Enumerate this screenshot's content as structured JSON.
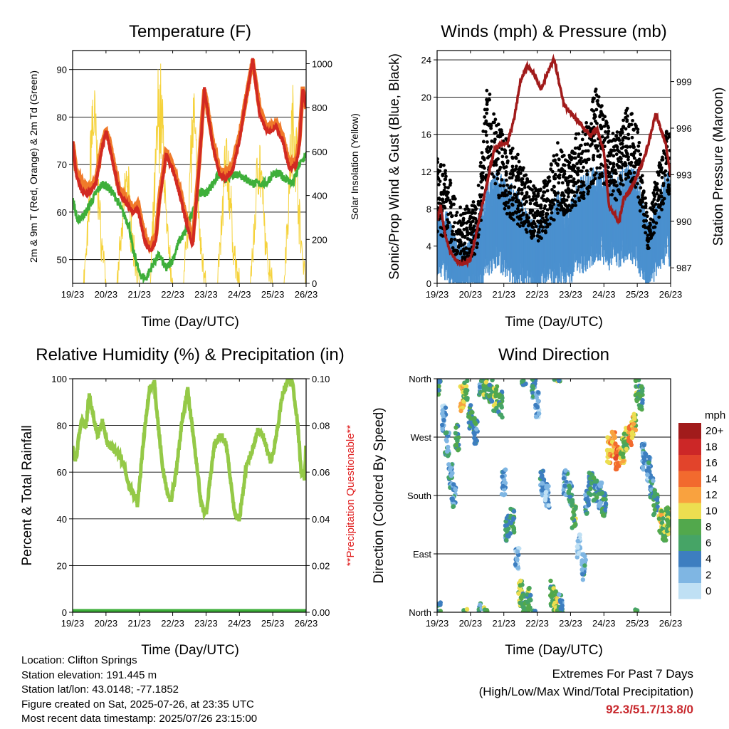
{
  "xticks": [
    "19/23",
    "20/23",
    "21/23",
    "22/23",
    "23/23",
    "24/23",
    "25/23",
    "26/23"
  ],
  "xlabel": "Time (Day/UTC)",
  "colors": {
    "temp_red": "#d22a22",
    "temp_orange": "#f07a2a",
    "dewpoint_green": "#3eaf3a",
    "solar_yellow": "#f5d23a",
    "gust_black": "#000000",
    "wind_blue": "#4a90cf",
    "pressure_maroon": "#a11b1b",
    "rh_green": "#94c947",
    "precip_green": "#3eaf3a",
    "questionable_red": "#e02020",
    "extremes_red": "#c8282d"
  },
  "chart_data": [
    {
      "id": "temperature",
      "type": "line",
      "title": "Temperature (F)",
      "xlabel": "Time (Day/UTC)",
      "ylabel": "2m & 9m T (Red, Orange) & 2m Td (Green)",
      "ylabel_right": "Solar Insolation (Yellow)",
      "ylim": [
        45,
        94
      ],
      "yticks": [
        50,
        60,
        70,
        80,
        90
      ],
      "ylim_right": [
        0,
        1060
      ],
      "yticks_right": [
        0,
        200,
        400,
        600,
        800,
        1000
      ],
      "xlim": [
        0,
        7
      ],
      "series": [
        {
          "axis": "left",
          "color": "#f07a2a",
          "x": [
            0,
            0.1,
            0.3,
            0.5,
            0.7,
            0.9,
            1.0,
            1.1,
            1.25,
            1.4,
            1.6,
            1.8,
            1.95,
            2.1,
            2.2,
            2.35,
            2.5,
            2.6,
            2.8,
            3.0,
            3.2,
            3.4,
            3.6,
            3.8,
            3.95,
            4.2,
            4.4,
            4.6,
            4.8,
            5.0,
            5.2,
            5.4,
            5.6,
            5.8,
            5.95,
            6.1,
            6.3,
            6.5,
            6.7,
            6.8,
            6.9,
            7.0
          ],
          "y": [
            75,
            69,
            66,
            65,
            67,
            75,
            77,
            75,
            70,
            65,
            63,
            61,
            62,
            57,
            54,
            53,
            55,
            63,
            73,
            70,
            65,
            59,
            54,
            71,
            86,
            75,
            69,
            68,
            70,
            76,
            84,
            92,
            82,
            78,
            78,
            79,
            76,
            70,
            71,
            75,
            86,
            82
          ]
        },
        {
          "axis": "left",
          "color": "#d22a22",
          "x": [
            0,
            0.1,
            0.3,
            0.5,
            0.7,
            0.9,
            1.0,
            1.1,
            1.25,
            1.4,
            1.6,
            1.8,
            1.95,
            2.1,
            2.2,
            2.35,
            2.5,
            2.6,
            2.8,
            3.0,
            3.2,
            3.4,
            3.6,
            3.8,
            3.95,
            4.2,
            4.4,
            4.6,
            4.8,
            5.0,
            5.2,
            5.4,
            5.6,
            5.8,
            5.95,
            6.1,
            6.3,
            6.5,
            6.7,
            6.8,
            6.9,
            7.0
          ],
          "y": [
            75,
            68,
            64,
            64,
            66,
            74,
            77,
            74,
            69,
            64,
            62,
            60,
            61,
            56,
            53,
            52,
            54,
            62,
            72,
            69,
            64,
            58,
            53,
            70,
            86,
            74,
            68,
            67,
            69,
            75,
            84,
            92,
            81,
            77,
            77,
            78,
            75,
            69,
            70,
            74,
            86,
            82
          ]
        },
        {
          "axis": "left",
          "color": "#3eaf3a",
          "x": [
            0,
            0.15,
            0.4,
            0.7,
            0.9,
            1.1,
            1.3,
            1.5,
            1.7,
            1.8,
            1.9,
            2.0,
            2.2,
            2.4,
            2.6,
            2.8,
            3.0,
            3.2,
            3.4,
            3.6,
            3.8,
            4.0,
            4.2,
            4.4,
            4.6,
            4.8,
            5.0,
            5.2,
            5.4,
            5.6,
            5.8,
            6.0,
            6.2,
            6.4,
            6.6,
            6.8,
            7.0
          ],
          "y": [
            63,
            58,
            60,
            64,
            66,
            65,
            63,
            60,
            57,
            52,
            50,
            47,
            46,
            49,
            51,
            48,
            50,
            54,
            56,
            60,
            64,
            64,
            66,
            68,
            67,
            68,
            68,
            67,
            66,
            66,
            66,
            68,
            68,
            67,
            66,
            70,
            72
          ]
        },
        {
          "axis": "right",
          "color": "#f5d23a",
          "x": [
            0,
            0.33,
            0.48,
            0.56,
            0.64,
            0.72,
            0.82,
            1.0,
            1.33,
            1.48,
            1.56,
            1.64,
            1.72,
            1.82,
            2.0,
            2.33,
            2.48,
            2.56,
            2.64,
            2.72,
            2.82,
            3.0,
            3.33,
            3.48,
            3.56,
            3.64,
            3.72,
            3.82,
            4.0,
            4.33,
            4.48,
            4.56,
            4.64,
            4.72,
            4.82,
            5.0,
            5.33,
            5.48,
            5.56,
            5.64,
            5.72,
            5.82,
            6.0,
            6.33,
            6.48,
            6.56,
            6.64,
            6.72,
            6.82,
            7.0
          ],
          "y": [
            0,
            0,
            350,
            870,
            980,
            750,
            350,
            0,
            0,
            300,
            500,
            650,
            400,
            200,
            0,
            0,
            600,
            980,
            1000,
            800,
            300,
            0,
            0,
            450,
            800,
            900,
            650,
            250,
            0,
            0,
            350,
            650,
            700,
            500,
            200,
            0,
            0,
            400,
            750,
            650,
            400,
            150,
            0,
            0,
            500,
            850,
            950,
            700,
            300,
            0
          ]
        }
      ]
    },
    {
      "id": "winds_pressure",
      "type": "scatter",
      "title": "Winds (mph) & Pressure (mb)",
      "xlabel": "Time (Day/UTC)",
      "ylabel": "Sonic/Prop Wind & Gust (Blue, Black)",
      "ylabel_right": "Station Pressure (Maroon)",
      "ylim": [
        0,
        25
      ],
      "yticks": [
        0,
        4,
        8,
        12,
        16,
        20,
        24
      ],
      "ylim_right": [
        986,
        1001
      ],
      "yticks_right": [
        987,
        990,
        993,
        996,
        999
      ],
      "xlim": [
        0,
        7
      ],
      "series": [
        {
          "axis": "right",
          "type": "line",
          "color": "#a11b1b",
          "x": [
            0,
            0.1,
            0.25,
            0.4,
            0.55,
            0.7,
            0.85,
            1.0,
            1.1,
            1.3,
            1.5,
            1.7,
            1.9,
            2.1,
            2.3,
            2.5,
            2.7,
            2.9,
            3.1,
            3.3,
            3.5,
            3.65,
            3.8,
            4.0,
            4.2,
            4.4,
            4.6,
            4.8,
            5.0,
            5.15,
            5.3,
            5.45,
            5.6,
            5.8,
            6.0,
            6.2,
            6.4,
            6.55,
            6.7,
            6.85,
            7.0
          ],
          "y": [
            990,
            991,
            989,
            988,
            987.5,
            987.3,
            987.3,
            987.5,
            988.5,
            990.5,
            992.5,
            994.5,
            995,
            995,
            996.5,
            999,
            1000,
            999.5,
            998.5,
            999.5,
            1000.5,
            999,
            997.5,
            997,
            996.5,
            996,
            995.5,
            996,
            994.5,
            991,
            990.5,
            990,
            991.5,
            992,
            993,
            994,
            995.5,
            997,
            996,
            995,
            993
          ]
        },
        {
          "axis": "left",
          "type": "band",
          "color": "#4a90cf",
          "x": [
            0,
            0.3,
            0.6,
            0.9,
            1.2,
            1.5,
            1.8,
            2.1,
            2.4,
            2.7,
            3.0,
            3.3,
            3.6,
            3.9,
            4.2,
            4.5,
            4.8,
            5.1,
            5.4,
            5.7,
            6.0,
            6.3,
            6.6,
            6.9,
            7.0
          ],
          "y": [
            5,
            4,
            2,
            2,
            3,
            6,
            7,
            6,
            5,
            4,
            3,
            4,
            5,
            4,
            6,
            7,
            8,
            7,
            7,
            8,
            7,
            3,
            5,
            8,
            7
          ],
          "spread": [
            3,
            3,
            2,
            2,
            3,
            4,
            4,
            4,
            4,
            3,
            3,
            3,
            4,
            3,
            4,
            4,
            4,
            4,
            4,
            4,
            4,
            3,
            3,
            4,
            4
          ]
        },
        {
          "axis": "left",
          "type": "points",
          "color": "#000000",
          "x": [
            0,
            0.3,
            0.6,
            0.9,
            1.2,
            1.5,
            1.8,
            2.1,
            2.4,
            2.7,
            3.0,
            3.3,
            3.6,
            3.9,
            4.2,
            4.5,
            4.8,
            5.1,
            5.4,
            5.7,
            6.0,
            6.3,
            6.6,
            6.9,
            7.0
          ],
          "y": [
            9,
            8,
            5,
            5,
            6,
            16,
            13,
            11,
            10,
            8,
            7,
            8,
            11,
            10,
            12,
            13,
            16,
            13,
            12,
            15,
            13,
            5,
            9,
            13,
            12
          ],
          "spread": [
            4,
            4,
            3,
            3,
            3,
            5,
            4,
            4,
            4,
            3,
            3,
            3,
            4,
            3,
            4,
            4,
            5,
            4,
            4,
            4,
            4,
            2,
            3,
            4,
            4
          ]
        }
      ]
    },
    {
      "id": "humidity_precip",
      "type": "line",
      "title": "Relative Humidity (%) & Precipitation (in)",
      "xlabel": "Time (Day/UTC)",
      "ylabel": "Percent & Total Rainfall",
      "ylabel_right": "**Precipitation Questionable**",
      "ylim": [
        0,
        100
      ],
      "yticks": [
        0,
        20,
        40,
        60,
        80,
        100
      ],
      "ylim_right": [
        0,
        0.1
      ],
      "yticks_right": [
        "0.00",
        "0.02",
        "0.04",
        "0.06",
        "0.08",
        "0.10"
      ],
      "xlim": [
        0,
        7
      ],
      "series": [
        {
          "axis": "left",
          "color": "#94c947",
          "x": [
            0,
            0.1,
            0.25,
            0.4,
            0.5,
            0.6,
            0.75,
            0.9,
            1.05,
            1.2,
            1.4,
            1.55,
            1.7,
            1.85,
            1.95,
            2.1,
            2.3,
            2.45,
            2.55,
            2.7,
            2.85,
            2.95,
            3.1,
            3.3,
            3.45,
            3.6,
            3.75,
            3.85,
            4.0,
            4.25,
            4.45,
            4.6,
            4.75,
            4.85,
            5.0,
            5.2,
            5.4,
            5.55,
            5.7,
            5.85,
            5.95,
            6.1,
            6.3,
            6.45,
            6.6,
            6.75,
            6.85,
            6.95,
            7.0
          ],
          "y": [
            70,
            65,
            82,
            80,
            93,
            85,
            76,
            82,
            72,
            70,
            68,
            62,
            54,
            50,
            46,
            70,
            96,
            98,
            82,
            62,
            50,
            48,
            60,
            84,
            95,
            78,
            60,
            46,
            42,
            72,
            76,
            72,
            55,
            42,
            40,
            62,
            70,
            78,
            76,
            68,
            64,
            75,
            94,
            99,
            98,
            80,
            60,
            58,
            72
          ]
        },
        {
          "axis": "right",
          "color": "#3eaf3a",
          "x": [
            0,
            7
          ],
          "y": [
            0,
            0
          ]
        }
      ]
    },
    {
      "id": "wind_direction",
      "type": "scatter",
      "title": "Wind Direction",
      "xlabel": "Time (Day/UTC)",
      "ylabel": "Direction (Colored By Speed)",
      "ylim": [
        0,
        360
      ],
      "ytick_labels": [
        "North",
        "East",
        "South",
        "West",
        "North"
      ],
      "ytick_values": [
        0,
        90,
        180,
        270,
        360
      ],
      "xlim": [
        0,
        7
      ],
      "legend": {
        "title": "mph",
        "labels": [
          "20+",
          "18",
          "16",
          "14",
          "12",
          "10",
          "8",
          "6",
          "4",
          "2",
          "0"
        ],
        "colors": [
          "#a11b1b",
          "#cc2727",
          "#e2442b",
          "#f26a2e",
          "#f9a23f",
          "#ecde50",
          "#52a84c",
          "#46a466",
          "#3d7ec0",
          "#7fb6e3",
          "#bfe0f4"
        ]
      },
      "series": [
        {
          "name": "",
          "x": [
            0.05,
            0.2,
            0.3,
            0.4,
            0.5,
            0.6,
            0.75,
            0.85,
            1.0,
            1.15,
            1.3,
            1.45,
            1.6,
            1.75,
            1.9,
            2.0,
            2.1,
            2.25,
            2.4,
            2.5,
            2.6,
            2.75,
            2.9,
            3.0,
            3.15,
            3.3,
            3.45,
            3.55,
            3.7,
            3.85,
            4.0,
            4.1,
            4.25,
            4.4,
            4.5,
            4.6,
            4.75,
            4.9,
            5.0,
            5.15,
            5.3,
            5.4,
            5.55,
            5.65,
            5.8,
            5.9,
            6.0,
            6.1,
            6.2,
            6.35,
            6.45,
            6.55,
            6.7,
            6.8,
            6.9,
            6.95
          ],
          "y": [
            355,
            300,
            260,
            210,
            180,
            270,
            330,
            345,
            300,
            280,
            355,
            350,
            340,
            330,
            320,
            200,
            130,
            140,
            80,
            30,
            10,
            20,
            350,
            320,
            200,
            180,
            30,
            15,
            10,
            200,
            180,
            150,
            100,
            70,
            170,
            200,
            190,
            180,
            165,
            250,
            260,
            240,
            250,
            265,
            275,
            290,
            345,
            330,
            240,
            220,
            190,
            170,
            140,
            130,
            150,
            140
          ],
          "speed": [
            6,
            2,
            3,
            4,
            4,
            6,
            10,
            8,
            6,
            5,
            4,
            7,
            6,
            8,
            6,
            3,
            4,
            6,
            2,
            8,
            6,
            7,
            5,
            2,
            3,
            2,
            7,
            9,
            5,
            3,
            4,
            7,
            2,
            3,
            4,
            6,
            5,
            4,
            6,
            12,
            12,
            14,
            10,
            8,
            12,
            10,
            7,
            6,
            3,
            3,
            4,
            6,
            10,
            8,
            9,
            8
          ]
        }
      ]
    }
  ],
  "footer": {
    "location": "Location: Clifton Springs",
    "elevation": "Station elevation: 191.445 m",
    "latlon": "Station lat/lon: 43.0148; -77.1852",
    "created": "Figure created on Sat, 2025-07-26, at 23:35 UTC",
    "recent": "Most recent data timestamp: 2025/07/26 23:15:00"
  },
  "extremes": {
    "title": "Extremes For Past 7 Days",
    "subtitle": "(High/Low/Max Wind/Total Precipitation)",
    "values": "92.3/51.7/13.8/0"
  }
}
